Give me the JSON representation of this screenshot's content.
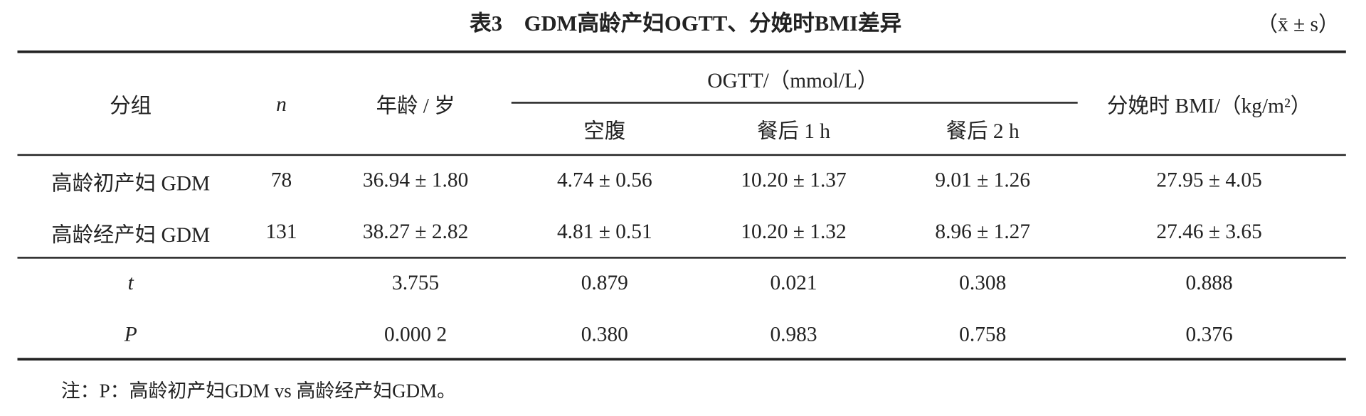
{
  "header": {
    "title": "表3　GDM高龄产妇OGTT、分娩时BMI差异",
    "unit": "（x̄ ± s）"
  },
  "table": {
    "columns": [
      "分组",
      "n",
      "年龄 / 岁",
      "OGTT/（mmol/L）",
      "分娩时 BMI/（kg/m²）"
    ],
    "subcolumns": [
      "空腹",
      "餐后 1 h",
      "餐后 2 h"
    ],
    "rows": [
      [
        "高龄初产妇 GDM",
        "78",
        "36.94 ± 1.80",
        "4.74 ± 0.56",
        "10.20 ± 1.37",
        "9.01 ± 1.26",
        "27.95 ± 4.05"
      ],
      [
        "高龄经产妇 GDM",
        "131",
        "38.27 ± 2.82",
        "4.81 ± 0.51",
        "10.20 ± 1.32",
        "8.96 ± 1.27",
        "27.46 ± 3.65"
      ],
      [
        "t",
        null,
        "3.755",
        "0.879",
        "0.021",
        "0.308",
        "0.888"
      ],
      [
        "P",
        null,
        "0.000 2",
        "0.380",
        "0.983",
        "0.758",
        "0.376"
      ]
    ]
  },
  "note": "注：P：高龄初产妇GDM vs 高龄经产妇GDM。"
}
